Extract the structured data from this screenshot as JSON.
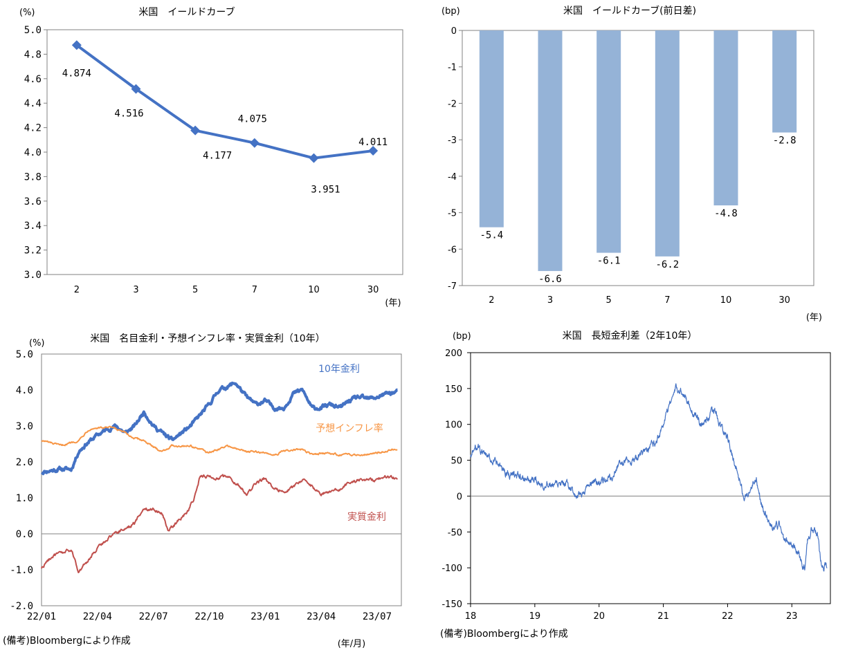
{
  "colors": {
    "line_blue": "#4472C4",
    "bar_blue": "#95B3D7",
    "orange": "#F79646",
    "red": "#C0504D",
    "axis": "#808080"
  },
  "chart_data": [
    {
      "type": "line",
      "title": "米国　イールドカーブ",
      "ylabel": "(%)",
      "xlabel": "(年)",
      "categories": [
        "2",
        "3",
        "5",
        "7",
        "10",
        "30"
      ],
      "values": [
        4.874,
        4.516,
        4.177,
        4.075,
        3.951,
        4.011
      ],
      "data_labels": [
        "4.874",
        "4.516",
        "4.177",
        "4.075",
        "3.951",
        "4.011"
      ],
      "ylim": [
        3.0,
        5.0
      ],
      "yticks": [
        "3.0",
        "3.2",
        "3.4",
        "3.6",
        "3.8",
        "4.0",
        "4.2",
        "4.4",
        "4.6",
        "4.8",
        "5.0"
      ],
      "grid": false
    },
    {
      "type": "bar",
      "title": "米国　イールドカーブ(前日差)",
      "ylabel": "(bp)",
      "xlabel": "(年)",
      "categories": [
        "2",
        "3",
        "5",
        "7",
        "10",
        "30"
      ],
      "values": [
        -5.4,
        -6.6,
        -6.1,
        -6.2,
        -4.8,
        -2.8
      ],
      "data_labels": [
        "-5.4",
        "-6.6",
        "-6.1",
        "-6.2",
        "-4.8",
        "-2.8"
      ],
      "ylim": [
        -7,
        0
      ],
      "yticks": [
        "0",
        "-1",
        "-2",
        "-3",
        "-4",
        "-5",
        "-6",
        "-7"
      ],
      "grid": false
    },
    {
      "type": "line",
      "title": "米国　名目金利・予想インフレ率・実質金利（10年）",
      "ylabel": "(%)",
      "xlabel": "(年/月)",
      "x_ticks": [
        "22/01",
        "22/04",
        "22/07",
        "22/10",
        "23/01",
        "23/04",
        "23/07"
      ],
      "yticks": [
        "-2.0",
        "-1.0",
        "0.0",
        "1.0",
        "2.0",
        "3.0",
        "4.0",
        "5.0"
      ],
      "ylim": [
        -2.0,
        5.0
      ],
      "x_range_months": [
        0,
        19.3
      ],
      "series": [
        {
          "name": "10年金利",
          "color": "#4472C4",
          "knots": [
            [
              0,
              1.72
            ],
            [
              1,
              1.8
            ],
            [
              1.6,
              1.8
            ],
            [
              2,
              2.3
            ],
            [
              2.4,
              2.5
            ],
            [
              3,
              2.75
            ],
            [
              3.5,
              2.9
            ],
            [
              4,
              3.0
            ],
            [
              4.5,
              2.8
            ],
            [
              5,
              3.0
            ],
            [
              5.5,
              3.4
            ],
            [
              6,
              3.0
            ],
            [
              6.5,
              2.8
            ],
            [
              7,
              2.6
            ],
            [
              7.5,
              2.8
            ],
            [
              8,
              3.0
            ],
            [
              8.5,
              3.3
            ],
            [
              9,
              3.6
            ],
            [
              9.5,
              4.0
            ],
            [
              10,
              4.1
            ],
            [
              10.4,
              4.2
            ],
            [
              11,
              3.8
            ],
            [
              11.5,
              3.6
            ],
            [
              12,
              3.7
            ],
            [
              12.5,
              3.5
            ],
            [
              13,
              3.5
            ],
            [
              13.5,
              3.9
            ],
            [
              14,
              4.0
            ],
            [
              14.5,
              3.5
            ],
            [
              15,
              3.5
            ],
            [
              15.5,
              3.6
            ],
            [
              16,
              3.5
            ],
            [
              16.5,
              3.7
            ],
            [
              17,
              3.8
            ],
            [
              17.5,
              3.75
            ],
            [
              18,
              3.8
            ],
            [
              18.5,
              3.9
            ],
            [
              19.1,
              3.95
            ]
          ]
        },
        {
          "name": "予想インフレ率",
          "color": "#F79646",
          "knots": [
            [
              0,
              2.6
            ],
            [
              1,
              2.45
            ],
            [
              2,
              2.6
            ],
            [
              2.5,
              2.9
            ],
            [
              3,
              2.95
            ],
            [
              3.8,
              2.95
            ],
            [
              4.5,
              2.8
            ],
            [
              5,
              2.65
            ],
            [
              5.5,
              2.6
            ],
            [
              6,
              2.4
            ],
            [
              6.5,
              2.3
            ],
            [
              7,
              2.45
            ],
            [
              7.5,
              2.45
            ],
            [
              8,
              2.45
            ],
            [
              8.5,
              2.35
            ],
            [
              9,
              2.25
            ],
            [
              9.5,
              2.35
            ],
            [
              10,
              2.45
            ],
            [
              10.5,
              2.35
            ],
            [
              11,
              2.3
            ],
            [
              12,
              2.25
            ],
            [
              12.5,
              2.2
            ],
            [
              13,
              2.3
            ],
            [
              14,
              2.35
            ],
            [
              14.5,
              2.2
            ],
            [
              15,
              2.25
            ],
            [
              16,
              2.2
            ],
            [
              17,
              2.2
            ],
            [
              18,
              2.25
            ],
            [
              19.1,
              2.38
            ]
          ]
        },
        {
          "name": "実質金利",
          "color": "#C0504D",
          "knots": [
            [
              0,
              -0.95
            ],
            [
              0.5,
              -0.65
            ],
            [
              1,
              -0.55
            ],
            [
              1.6,
              -0.45
            ],
            [
              2,
              -1.05
            ],
            [
              2.5,
              -0.75
            ],
            [
              3,
              -0.4
            ],
            [
              3.5,
              -0.15
            ],
            [
              4,
              0.05
            ],
            [
              4.5,
              0.15
            ],
            [
              5,
              0.3
            ],
            [
              5.5,
              0.7
            ],
            [
              6,
              0.7
            ],
            [
              6.5,
              0.55
            ],
            [
              6.8,
              0.1
            ],
            [
              7.2,
              0.3
            ],
            [
              7.8,
              0.6
            ],
            [
              8.2,
              1.0
            ],
            [
              8.5,
              1.6
            ],
            [
              9,
              1.6
            ],
            [
              9.5,
              1.55
            ],
            [
              10,
              1.6
            ],
            [
              10.5,
              1.4
            ],
            [
              11,
              1.1
            ],
            [
              11.5,
              1.4
            ],
            [
              12,
              1.55
            ],
            [
              12.5,
              1.25
            ],
            [
              13,
              1.2
            ],
            [
              13.5,
              1.3
            ],
            [
              14,
              1.5
            ],
            [
              14.5,
              1.3
            ],
            [
              15,
              1.1
            ],
            [
              15.5,
              1.2
            ],
            [
              16,
              1.25
            ],
            [
              16.5,
              1.4
            ],
            [
              17,
              1.5
            ],
            [
              17.5,
              1.5
            ],
            [
              18,
              1.5
            ],
            [
              18.5,
              1.6
            ],
            [
              19.1,
              1.55
            ]
          ]
        }
      ],
      "annotations": [
        "10年金利",
        "予想インフレ率",
        "実質金利"
      ],
      "grid": false
    },
    {
      "type": "line",
      "title": "米国　長短金利差（2年10年）",
      "ylabel": "(bp)",
      "x_ticks": [
        "18",
        "19",
        "20",
        "21",
        "22",
        "23"
      ],
      "yticks": [
        "200",
        "150",
        "100",
        "50",
        "0",
        "-50",
        "-100",
        "-150"
      ],
      "ylim": [
        -150,
        200
      ],
      "x_range_years": [
        18,
        23.6
      ],
      "series": [
        {
          "name": "長短金利差",
          "color": "#4472C4",
          "knots": [
            [
              18.0,
              55
            ],
            [
              18.1,
              70
            ],
            [
              18.2,
              58
            ],
            [
              18.4,
              45
            ],
            [
              18.6,
              30
            ],
            [
              18.8,
              25
            ],
            [
              19.0,
              20
            ],
            [
              19.3,
              15
            ],
            [
              19.5,
              15
            ],
            [
              19.6,
              5
            ],
            [
              19.65,
              -5
            ],
            [
              19.8,
              10
            ],
            [
              19.9,
              20
            ],
            [
              20.0,
              20
            ],
            [
              20.2,
              25
            ],
            [
              20.3,
              45
            ],
            [
              20.5,
              50
            ],
            [
              20.7,
              60
            ],
            [
              20.9,
              80
            ],
            [
              21.0,
              100
            ],
            [
              21.1,
              130
            ],
            [
              21.2,
              150
            ],
            [
              21.3,
              145
            ],
            [
              21.4,
              130
            ],
            [
              21.5,
              110
            ],
            [
              21.6,
              100
            ],
            [
              21.7,
              110
            ],
            [
              21.8,
              120
            ],
            [
              21.9,
              95
            ],
            [
              22.0,
              80
            ],
            [
              22.1,
              50
            ],
            [
              22.2,
              20
            ],
            [
              22.25,
              -5
            ],
            [
              22.35,
              10
            ],
            [
              22.45,
              25
            ],
            [
              22.5,
              0
            ],
            [
              22.6,
              -30
            ],
            [
              22.7,
              -45
            ],
            [
              22.8,
              -40
            ],
            [
              22.9,
              -65
            ],
            [
              23.0,
              -65
            ],
            [
              23.1,
              -80
            ],
            [
              23.2,
              -100
            ],
            [
              23.25,
              -60
            ],
            [
              23.3,
              -45
            ],
            [
              23.4,
              -55
            ],
            [
              23.45,
              -90
            ],
            [
              23.5,
              -100
            ],
            [
              23.55,
              -95
            ]
          ]
        }
      ],
      "grid": false
    }
  ],
  "notes": {
    "source_left": "(備考)Bloombergにより作成",
    "source_right": "(備考)Bloombergにより作成"
  }
}
